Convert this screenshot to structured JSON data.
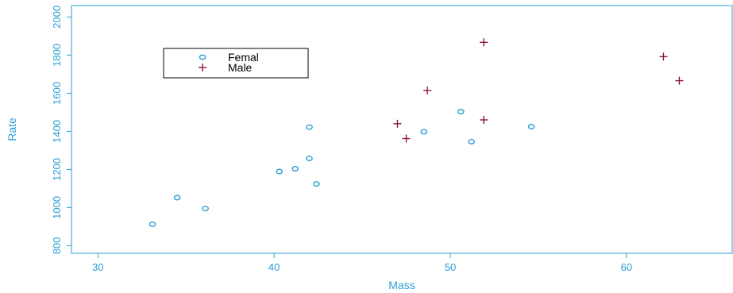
{
  "chart_data": {
    "type": "scatter",
    "xlabel": "Mass",
    "ylabel": "Rate",
    "xlim": [
      28.5,
      66
    ],
    "ylim": [
      760,
      2060
    ],
    "xticks": [
      30,
      40,
      50,
      60
    ],
    "yticks": [
      800,
      1000,
      1200,
      1400,
      1600,
      1800,
      2000
    ],
    "grid": false,
    "legend_position": "top-left",
    "axis_color": "#2a9fd6",
    "series": [
      {
        "name": "Femal",
        "marker": "circle",
        "color": "#2a9fd6",
        "points": [
          [
            33.1,
            912
          ],
          [
            34.5,
            1052
          ],
          [
            36.1,
            995
          ],
          [
            40.3,
            1189
          ],
          [
            41.2,
            1204
          ],
          [
            42.0,
            1422
          ],
          [
            42.0,
            1258
          ],
          [
            42.4,
            1124
          ],
          [
            48.5,
            1398
          ],
          [
            50.6,
            1503
          ],
          [
            51.2,
            1346
          ],
          [
            54.6,
            1425
          ]
        ]
      },
      {
        "name": "Male",
        "marker": "plus",
        "color": "#8b1a3a",
        "points": [
          [
            47.0,
            1440
          ],
          [
            47.5,
            1362
          ],
          [
            48.7,
            1614
          ],
          [
            51.9,
            1867
          ],
          [
            51.9,
            1460
          ],
          [
            62.1,
            1792
          ],
          [
            63.0,
            1666
          ]
        ]
      }
    ]
  }
}
